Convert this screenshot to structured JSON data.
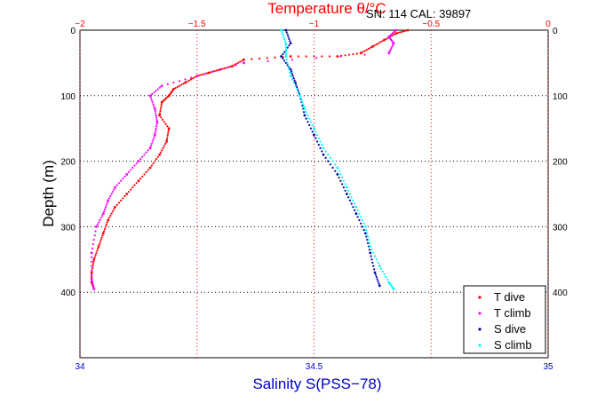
{
  "header": {
    "sn_cal": "SN: 114  CAL: 39897"
  },
  "colors": {
    "t_dive": "#ff0000",
    "t_climb": "#ff00ff",
    "s_dive": "#0000aa",
    "s_climb": "#00ffff",
    "t_axis": "#ff0000",
    "s_axis": "#0000cc"
  },
  "chart_data": {
    "type": "scatter",
    "title": "",
    "ylabel": "Depth (m)",
    "x_top_label": "Temperature θ/°C",
    "x_bottom_label": "Salinity S(PSS−78)",
    "ylim": [
      0,
      500
    ],
    "y_inverted": true,
    "y_ticks": [
      0,
      100,
      200,
      300,
      400
    ],
    "t_xlim": [
      -2,
      0
    ],
    "t_ticks": [
      -2,
      -1.5,
      -1,
      -0.5,
      0
    ],
    "t_tick_labels": [
      "−2",
      "−1.5",
      "−1",
      "−0.5",
      "0"
    ],
    "s_xlim": [
      34,
      35
    ],
    "s_ticks": [
      34,
      34.5,
      35
    ],
    "s_tick_labels": [
      "34",
      "34.5",
      "35"
    ],
    "grid": true,
    "legend_position": "bottom-right",
    "legend": [
      "T dive",
      "T climb",
      "S dive",
      "S climb"
    ],
    "series": [
      {
        "name": "T dive",
        "axis": "temperature",
        "x": [
          -0.6,
          -0.65,
          -0.7,
          -0.75,
          -0.8,
          -0.9,
          -1.1,
          -1.3,
          -1.35,
          -1.4,
          -1.45,
          -1.5,
          -1.55,
          -1.6,
          -1.62,
          -1.65,
          -1.66,
          -1.62,
          -1.63,
          -1.66,
          -1.7,
          -1.75,
          -1.8,
          -1.85,
          -1.88,
          -1.9,
          -1.92,
          -1.94,
          -1.95,
          -1.95,
          -1.94
        ],
        "y": [
          0,
          5,
          15,
          25,
          35,
          40,
          40,
          45,
          55,
          60,
          65,
          70,
          80,
          90,
          100,
          110,
          130,
          150,
          170,
          190,
          210,
          230,
          250,
          270,
          290,
          310,
          330,
          350,
          370,
          385,
          395
        ]
      },
      {
        "name": "T climb",
        "axis": "temperature",
        "x": [
          -0.65,
          -0.68,
          -0.66,
          -0.68,
          -1.3,
          -1.5,
          -1.65,
          -1.7,
          -1.68,
          -1.67,
          -1.68,
          -1.7,
          -1.75,
          -1.8,
          -1.85,
          -1.88,
          -1.9,
          -1.93,
          -1.95,
          -1.95,
          -1.94
        ],
        "y": [
          0,
          10,
          20,
          35,
          50,
          70,
          85,
          100,
          120,
          140,
          160,
          180,
          200,
          220,
          240,
          260,
          280,
          300,
          340,
          380,
          395
        ]
      },
      {
        "name": "S dive",
        "axis": "salinity",
        "x": [
          34.44,
          34.45,
          34.43,
          34.45,
          34.46,
          34.47,
          34.48,
          34.5,
          34.52,
          34.55,
          34.57,
          34.59,
          34.61,
          34.62,
          34.63,
          34.64
        ],
        "y": [
          0,
          20,
          40,
          60,
          80,
          100,
          130,
          160,
          190,
          220,
          250,
          280,
          310,
          340,
          370,
          390
        ]
      },
      {
        "name": "S climb",
        "axis": "salinity",
        "x": [
          34.43,
          34.44,
          34.44,
          34.45,
          34.47,
          34.48,
          34.5,
          34.52,
          34.55,
          34.57,
          34.59,
          34.61,
          34.62,
          34.64,
          34.66,
          34.67
        ],
        "y": [
          0,
          20,
          40,
          70,
          100,
          120,
          150,
          180,
          210,
          240,
          270,
          300,
          330,
          360,
          385,
          395
        ]
      }
    ]
  }
}
